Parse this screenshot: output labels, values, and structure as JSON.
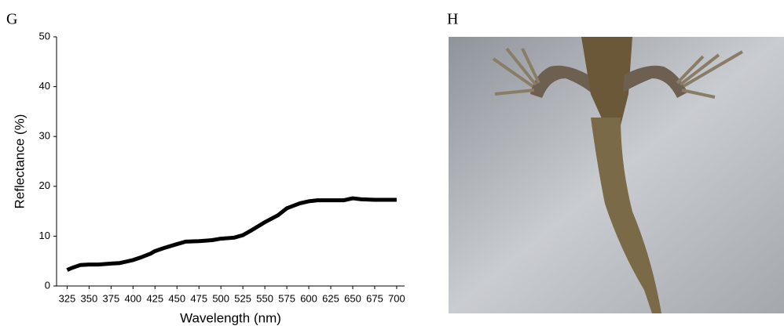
{
  "panels": [
    "G",
    "H"
  ],
  "chart_data": {
    "type": "line",
    "x_label": "Wavelength (nm)",
    "y_label": "Reflectance (%)",
    "x": [
      325,
      330,
      335,
      340,
      350,
      360,
      375,
      385,
      400,
      410,
      420,
      425,
      435,
      450,
      460,
      475,
      490,
      500,
      515,
      525,
      535,
      550,
      565,
      575,
      590,
      600,
      610,
      625,
      640,
      650,
      660,
      675,
      690,
      700
    ],
    "series": [
      {
        "name": "Reflectance",
        "color": "#000000",
        "values": [
          3.2,
          3.6,
          3.9,
          4.2,
          4.3,
          4.3,
          4.5,
          4.6,
          5.2,
          5.8,
          6.5,
          7.0,
          7.6,
          8.4,
          8.9,
          9.0,
          9.2,
          9.5,
          9.7,
          10.2,
          11.2,
          12.8,
          14.2,
          15.6,
          16.6,
          17.0,
          17.2,
          17.2,
          17.2,
          17.6,
          17.4,
          17.3,
          17.3,
          17.3
        ]
      }
    ],
    "xlim": [
      313,
      709
    ],
    "ylim": [
      0,
      50
    ],
    "xticks": [
      325,
      350,
      375,
      400,
      425,
      450,
      475,
      500,
      525,
      550,
      575,
      600,
      625,
      650,
      675,
      700
    ],
    "yticks": [
      0,
      10,
      20,
      30,
      40,
      50
    ],
    "grid": false
  }
}
